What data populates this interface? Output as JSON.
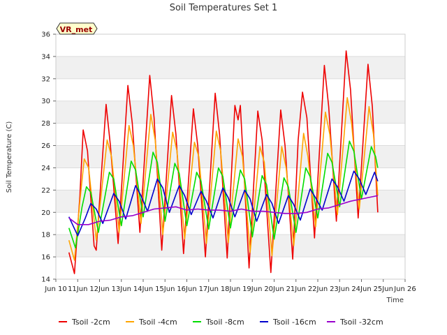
{
  "chart_data": {
    "type": "line",
    "title": "Soil Temperatures Set 1",
    "xlabel": "Time",
    "ylabel": "Soil Temperature (C)",
    "badge": "VR_met",
    "xlim": [
      10,
      26
    ],
    "ylim": [
      14,
      36
    ],
    "x_ticks": [
      {
        "value": 10,
        "label": "Jun 10"
      },
      {
        "value": 11,
        "label": "11Jun"
      },
      {
        "value": 12,
        "label": "12Jun"
      },
      {
        "value": 13,
        "label": "13Jun"
      },
      {
        "value": 14,
        "label": "14Jun"
      },
      {
        "value": 15,
        "label": "15Jun"
      },
      {
        "value": 16,
        "label": "16Jun"
      },
      {
        "value": 17,
        "label": "17Jun"
      },
      {
        "value": 18,
        "label": "18Jun"
      },
      {
        "value": 19,
        "label": "19Jun"
      },
      {
        "value": 20,
        "label": "20Jun"
      },
      {
        "value": 21,
        "label": "21Jun"
      },
      {
        "value": 22,
        "label": "22Jun"
      },
      {
        "value": 23,
        "label": "23Jun"
      },
      {
        "value": 24,
        "label": "24Jun"
      },
      {
        "value": 25,
        "label": "25Jun"
      },
      {
        "value": 26,
        "label": "Jun 26"
      }
    ],
    "y_ticks": [
      14,
      16,
      18,
      20,
      22,
      24,
      26,
      28,
      30,
      32,
      34,
      36
    ],
    "grid": true,
    "legend_position": "bottom",
    "series": [
      {
        "name": "Tsoil -2cm",
        "color": "#ee0000",
        "points": [
          [
            10.6,
            16.4
          ],
          [
            10.85,
            14.5
          ],
          [
            11.1,
            21.5
          ],
          [
            11.25,
            27.4
          ],
          [
            11.45,
            25.5
          ],
          [
            11.75,
            17.0
          ],
          [
            11.85,
            16.6
          ],
          [
            12.3,
            29.7
          ],
          [
            12.5,
            26.0
          ],
          [
            12.85,
            17.2
          ],
          [
            13.3,
            31.4
          ],
          [
            13.5,
            28.0
          ],
          [
            13.85,
            18.2
          ],
          [
            14.3,
            32.3
          ],
          [
            14.5,
            28.5
          ],
          [
            14.85,
            16.6
          ],
          [
            15.3,
            30.5
          ],
          [
            15.5,
            27.0
          ],
          [
            15.85,
            16.3
          ],
          [
            16.3,
            29.3
          ],
          [
            16.5,
            26.0
          ],
          [
            16.85,
            16.0
          ],
          [
            17.3,
            30.7
          ],
          [
            17.5,
            27.0
          ],
          [
            17.85,
            15.9
          ],
          [
            18.2,
            29.6
          ],
          [
            18.35,
            28.3
          ],
          [
            18.45,
            29.6
          ],
          [
            18.85,
            15.0
          ],
          [
            19.25,
            29.1
          ],
          [
            19.45,
            26.5
          ],
          [
            19.85,
            14.6
          ],
          [
            20.3,
            29.2
          ],
          [
            20.5,
            26.0
          ],
          [
            20.85,
            15.8
          ],
          [
            21.1,
            26.5
          ],
          [
            21.3,
            30.8
          ],
          [
            21.5,
            28.5
          ],
          [
            21.85,
            17.7
          ],
          [
            22.3,
            33.2
          ],
          [
            22.5,
            29.5
          ],
          [
            22.85,
            19.2
          ],
          [
            23.3,
            34.5
          ],
          [
            23.5,
            31.0
          ],
          [
            23.85,
            19.5
          ],
          [
            24.3,
            33.3
          ],
          [
            24.5,
            29.5
          ],
          [
            24.75,
            20.0
          ]
        ]
      },
      {
        "name": "Tsoil -4cm",
        "color": "#ffa500",
        "points": [
          [
            10.6,
            17.5
          ],
          [
            10.85,
            15.7
          ],
          [
            11.1,
            21.0
          ],
          [
            11.3,
            24.8
          ],
          [
            11.5,
            24.0
          ],
          [
            11.85,
            17.5
          ],
          [
            12.35,
            26.5
          ],
          [
            12.55,
            25.0
          ],
          [
            12.9,
            18.2
          ],
          [
            13.35,
            27.8
          ],
          [
            13.55,
            26.0
          ],
          [
            13.9,
            19.0
          ],
          [
            14.35,
            28.8
          ],
          [
            14.55,
            26.5
          ],
          [
            14.9,
            18.0
          ],
          [
            15.35,
            27.2
          ],
          [
            15.55,
            25.5
          ],
          [
            15.9,
            17.6
          ],
          [
            16.35,
            26.3
          ],
          [
            16.55,
            25.0
          ],
          [
            16.9,
            17.2
          ],
          [
            17.35,
            27.3
          ],
          [
            17.55,
            25.5
          ],
          [
            17.9,
            17.3
          ],
          [
            18.35,
            26.6
          ],
          [
            18.55,
            25.0
          ],
          [
            18.9,
            16.4
          ],
          [
            19.35,
            25.9
          ],
          [
            19.55,
            24.5
          ],
          [
            19.9,
            16.1
          ],
          [
            20.35,
            25.9
          ],
          [
            20.55,
            24.0
          ],
          [
            20.9,
            17.0
          ],
          [
            21.35,
            27.1
          ],
          [
            21.55,
            25.0
          ],
          [
            21.9,
            18.7
          ],
          [
            22.35,
            29.0
          ],
          [
            22.55,
            27.0
          ],
          [
            22.9,
            19.8
          ],
          [
            23.35,
            30.3
          ],
          [
            23.55,
            28.0
          ],
          [
            23.9,
            20.3
          ],
          [
            24.35,
            29.5
          ],
          [
            24.55,
            27.0
          ],
          [
            24.75,
            21.5
          ]
        ]
      },
      {
        "name": "Tsoil -8cm",
        "color": "#00dd00",
        "points": [
          [
            10.6,
            18.6
          ],
          [
            10.9,
            16.8
          ],
          [
            11.2,
            20.5
          ],
          [
            11.4,
            22.3
          ],
          [
            11.6,
            21.8
          ],
          [
            11.95,
            18.2
          ],
          [
            12.45,
            23.6
          ],
          [
            12.65,
            23.0
          ],
          [
            13.0,
            18.8
          ],
          [
            13.45,
            24.6
          ],
          [
            13.65,
            23.8
          ],
          [
            14.0,
            19.6
          ],
          [
            14.45,
            25.4
          ],
          [
            14.65,
            24.5
          ],
          [
            15.0,
            19.2
          ],
          [
            15.45,
            24.4
          ],
          [
            15.65,
            23.5
          ],
          [
            16.0,
            18.8
          ],
          [
            16.45,
            23.6
          ],
          [
            16.65,
            22.8
          ],
          [
            17.0,
            18.5
          ],
          [
            17.45,
            24.0
          ],
          [
            17.65,
            23.2
          ],
          [
            18.0,
            18.6
          ],
          [
            18.45,
            23.8
          ],
          [
            18.65,
            23.0
          ],
          [
            19.0,
            17.8
          ],
          [
            19.45,
            23.3
          ],
          [
            19.65,
            22.5
          ],
          [
            20.0,
            17.6
          ],
          [
            20.45,
            23.1
          ],
          [
            20.65,
            22.3
          ],
          [
            21.0,
            18.2
          ],
          [
            21.45,
            24.0
          ],
          [
            21.65,
            23.2
          ],
          [
            22.0,
            19.5
          ],
          [
            22.45,
            25.3
          ],
          [
            22.65,
            24.5
          ],
          [
            23.0,
            20.5
          ],
          [
            23.45,
            26.4
          ],
          [
            23.65,
            25.5
          ],
          [
            24.0,
            21.2
          ],
          [
            24.45,
            25.9
          ],
          [
            24.65,
            25.0
          ],
          [
            24.75,
            24.0
          ]
        ]
      },
      {
        "name": "Tsoil -16cm",
        "color": "#0000cc",
        "points": [
          [
            10.6,
            19.6
          ],
          [
            11.0,
            17.9
          ],
          [
            11.35,
            19.5
          ],
          [
            11.6,
            20.8
          ],
          [
            11.85,
            20.3
          ],
          [
            12.15,
            19.0
          ],
          [
            12.65,
            21.7
          ],
          [
            12.9,
            21.0
          ],
          [
            13.2,
            19.4
          ],
          [
            13.65,
            22.4
          ],
          [
            13.9,
            21.5
          ],
          [
            14.2,
            20.1
          ],
          [
            14.65,
            23.0
          ],
          [
            14.9,
            22.2
          ],
          [
            15.2,
            20.0
          ],
          [
            15.65,
            22.4
          ],
          [
            15.9,
            21.5
          ],
          [
            16.2,
            19.8
          ],
          [
            16.65,
            21.9
          ],
          [
            16.9,
            21.0
          ],
          [
            17.2,
            19.5
          ],
          [
            17.65,
            22.2
          ],
          [
            17.9,
            21.3
          ],
          [
            18.2,
            19.6
          ],
          [
            18.65,
            22.0
          ],
          [
            18.9,
            21.2
          ],
          [
            19.2,
            19.2
          ],
          [
            19.65,
            21.6
          ],
          [
            19.9,
            20.8
          ],
          [
            20.2,
            19.0
          ],
          [
            20.65,
            21.5
          ],
          [
            20.9,
            20.7
          ],
          [
            21.2,
            19.3
          ],
          [
            21.65,
            22.1
          ],
          [
            21.9,
            21.3
          ],
          [
            22.2,
            20.2
          ],
          [
            22.65,
            23.0
          ],
          [
            22.9,
            22.3
          ],
          [
            23.2,
            21.0
          ],
          [
            23.65,
            23.7
          ],
          [
            23.9,
            23.0
          ],
          [
            24.2,
            21.6
          ],
          [
            24.6,
            23.6
          ],
          [
            24.75,
            22.8
          ]
        ]
      },
      {
        "name": "Tsoil -32cm",
        "color": "#9900cc",
        "points": [
          [
            10.6,
            19.5
          ],
          [
            11.0,
            18.9
          ],
          [
            11.5,
            18.9
          ],
          [
            12.0,
            19.2
          ],
          [
            12.5,
            19.3
          ],
          [
            13.0,
            19.6
          ],
          [
            13.5,
            19.7
          ],
          [
            14.0,
            20.0
          ],
          [
            14.5,
            20.3
          ],
          [
            15.0,
            20.4
          ],
          [
            15.5,
            20.5
          ],
          [
            16.0,
            20.2
          ],
          [
            16.5,
            20.3
          ],
          [
            17.0,
            20.2
          ],
          [
            17.5,
            20.2
          ],
          [
            18.0,
            20.1
          ],
          [
            18.5,
            20.3
          ],
          [
            19.0,
            20.1
          ],
          [
            19.5,
            20.1
          ],
          [
            20.0,
            20.0
          ],
          [
            20.5,
            19.9
          ],
          [
            21.0,
            19.9
          ],
          [
            21.5,
            20.0
          ],
          [
            22.0,
            20.3
          ],
          [
            22.5,
            20.4
          ],
          [
            23.0,
            20.7
          ],
          [
            23.5,
            21.0
          ],
          [
            24.0,
            21.2
          ],
          [
            24.5,
            21.4
          ],
          [
            24.75,
            21.5
          ]
        ]
      }
    ]
  }
}
